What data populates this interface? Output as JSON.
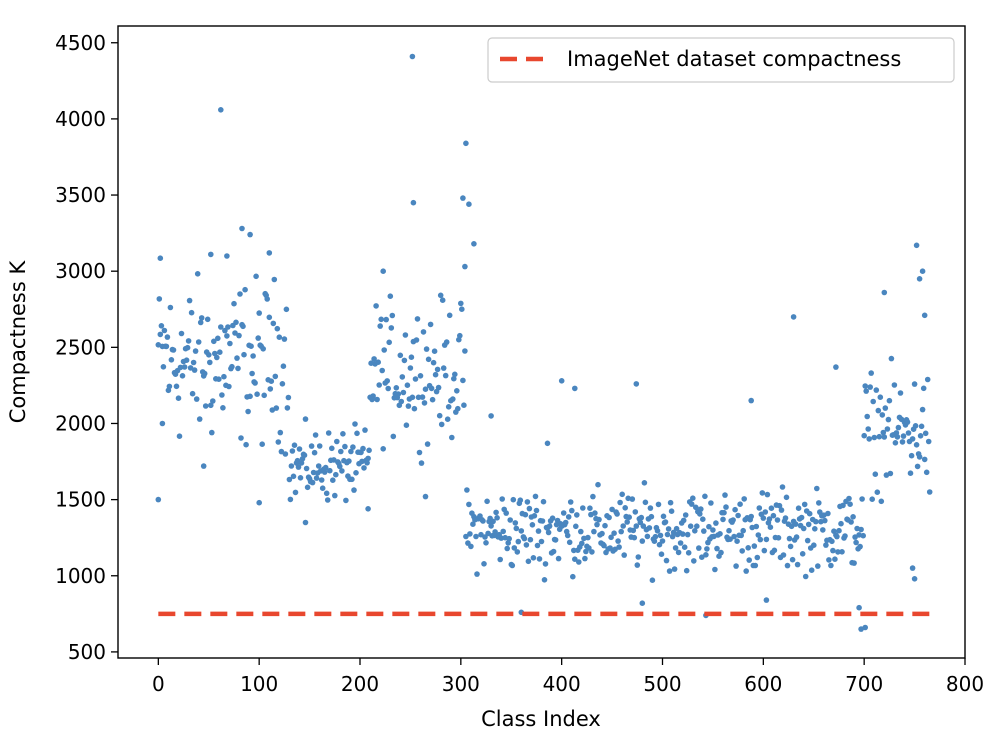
{
  "chart_data": {
    "type": "scatter",
    "title": "",
    "xlabel": "Class Index",
    "ylabel": "Compactness K",
    "xlim": [
      -40,
      800
    ],
    "ylim": [
      460,
      4610
    ],
    "xticks": [
      "0",
      "100",
      "200",
      "300",
      "400",
      "500",
      "600",
      "700",
      "800"
    ],
    "yticks": [
      "500",
      "1000",
      "1500",
      "2000",
      "2500",
      "3000",
      "3500",
      "4000",
      "4500"
    ],
    "grid": false,
    "legend_position": "top-right",
    "colors": {
      "points": "#4a86bf",
      "reference": "#e8472e"
    },
    "reference_line": {
      "name": "ImageNet dataset compactness",
      "y": 750,
      "x_range": [
        0,
        765
      ]
    },
    "segments": [
      {
        "x_range": [
          0,
          10
        ],
        "center": 2480,
        "spread": 520
      },
      {
        "x_range": [
          10,
          130
        ],
        "center": 2400,
        "spread": 680
      },
      {
        "x_range": [
          130,
          210
        ],
        "center": 1720,
        "spread": 300
      },
      {
        "x_range": [
          210,
          305
        ],
        "center": 2350,
        "spread": 560
      },
      {
        "x_range": [
          305,
          700
        ],
        "center": 1300,
        "spread": 330
      },
      {
        "x_range": [
          700,
          765
        ],
        "center": 1950,
        "spread": 480
      }
    ],
    "outliers": [
      {
        "x": 0,
        "y": 1500
      },
      {
        "x": 2,
        "y": 3085
      },
      {
        "x": 4,
        "y": 2000
      },
      {
        "x": 62,
        "y": 4060
      },
      {
        "x": 83,
        "y": 3280
      },
      {
        "x": 91,
        "y": 3240
      },
      {
        "x": 110,
        "y": 3120
      },
      {
        "x": 52,
        "y": 3110
      },
      {
        "x": 68,
        "y": 3100
      },
      {
        "x": 100,
        "y": 1480
      },
      {
        "x": 45,
        "y": 1720
      },
      {
        "x": 252,
        "y": 4410
      },
      {
        "x": 305,
        "y": 3840
      },
      {
        "x": 302,
        "y": 3480
      },
      {
        "x": 308,
        "y": 3440
      },
      {
        "x": 253,
        "y": 3450
      },
      {
        "x": 313,
        "y": 3180
      },
      {
        "x": 304,
        "y": 3030
      },
      {
        "x": 223,
        "y": 3000
      },
      {
        "x": 208,
        "y": 1440
      },
      {
        "x": 146,
        "y": 1350
      },
      {
        "x": 265,
        "y": 1520
      },
      {
        "x": 400,
        "y": 2280
      },
      {
        "x": 413,
        "y": 2230
      },
      {
        "x": 474,
        "y": 2260
      },
      {
        "x": 630,
        "y": 2700
      },
      {
        "x": 672,
        "y": 2370
      },
      {
        "x": 588,
        "y": 2150
      },
      {
        "x": 330,
        "y": 2050
      },
      {
        "x": 386,
        "y": 1870
      },
      {
        "x": 360,
        "y": 760
      },
      {
        "x": 543,
        "y": 740
      },
      {
        "x": 697,
        "y": 650
      },
      {
        "x": 701,
        "y": 660
      },
      {
        "x": 695,
        "y": 790
      },
      {
        "x": 480,
        "y": 820
      },
      {
        "x": 603,
        "y": 840
      },
      {
        "x": 720,
        "y": 2860
      },
      {
        "x": 752,
        "y": 3170
      },
      {
        "x": 758,
        "y": 3000
      },
      {
        "x": 755,
        "y": 2950
      },
      {
        "x": 760,
        "y": 2710
      },
      {
        "x": 750,
        "y": 980
      },
      {
        "x": 748,
        "y": 1050
      },
      {
        "x": 765,
        "y": 1550
      }
    ]
  }
}
